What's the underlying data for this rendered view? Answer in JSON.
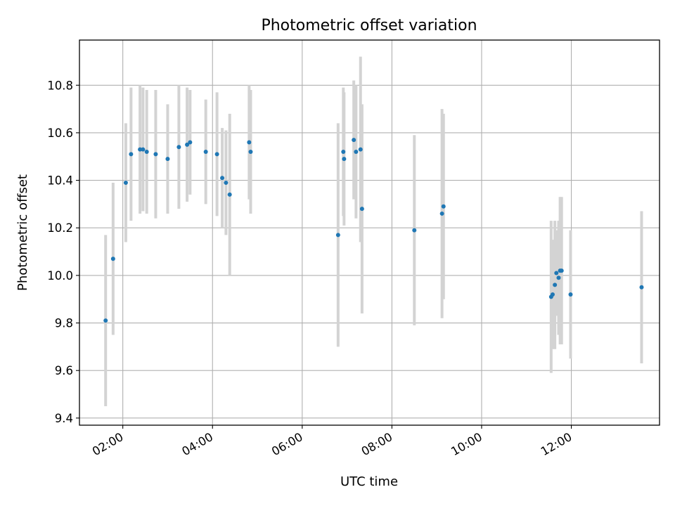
{
  "chart_data": {
    "type": "scatter",
    "title": "Photometric offset variation",
    "xlabel": "UTC time",
    "ylabel": "Photometric offset",
    "x_tick_labels": [
      "02:00",
      "04:00",
      "06:00",
      "08:00",
      "10:00",
      "12:00"
    ],
    "y_tick_labels": [
      "9.4",
      "9.6",
      "9.8",
      "10.0",
      "10.2",
      "10.4",
      "10.6",
      "10.8"
    ],
    "xlim": [
      "01:02",
      "13:58"
    ],
    "ylim": [
      9.37,
      10.99
    ],
    "grid": true,
    "colors": {
      "points": "#1f77b4",
      "errorbars": "#d3d3d3",
      "grid": "#b0b0b0"
    },
    "series": [
      {
        "x": [
          "01:37",
          "01:47",
          "02:04",
          "02:11",
          "02:23",
          "02:27",
          "02:32",
          "02:44",
          "03:00",
          "03:15",
          "03:26",
          "03:30",
          "03:51",
          "04:06",
          "04:13",
          "04:18",
          "04:23",
          "04:49",
          "04:51",
          "06:48",
          "06:55",
          "06:56",
          "07:09",
          "07:12",
          "07:18",
          "07:20",
          "08:30",
          "09:07",
          "09:09",
          "11:33",
          "11:35",
          "11:38",
          "11:40",
          "11:43",
          "11:45",
          "11:47",
          "11:59",
          "13:34"
        ],
        "y": [
          9.81,
          10.07,
          10.39,
          10.51,
          10.53,
          10.53,
          10.52,
          10.51,
          10.49,
          10.54,
          10.55,
          10.56,
          10.52,
          10.51,
          10.41,
          10.39,
          10.34,
          10.56,
          10.52,
          10.17,
          10.52,
          10.49,
          10.57,
          10.52,
          10.53,
          10.28,
          10.19,
          10.26,
          10.29,
          9.91,
          9.92,
          9.96,
          10.01,
          9.99,
          10.02,
          10.02,
          9.92,
          9.95
        ],
        "yerr": [
          0.36,
          0.32,
          0.25,
          0.28,
          0.27,
          0.26,
          0.26,
          0.27,
          0.23,
          0.26,
          0.24,
          0.22,
          0.22,
          0.26,
          0.21,
          0.22,
          0.34,
          0.24,
          0.26,
          0.47,
          0.27,
          0.28,
          0.25,
          0.28,
          0.39,
          0.44,
          0.4,
          0.44,
          0.39,
          0.32,
          0.23,
          0.27,
          0.18,
          0.24,
          0.31,
          0.31,
          0.27,
          0.32
        ]
      }
    ]
  }
}
